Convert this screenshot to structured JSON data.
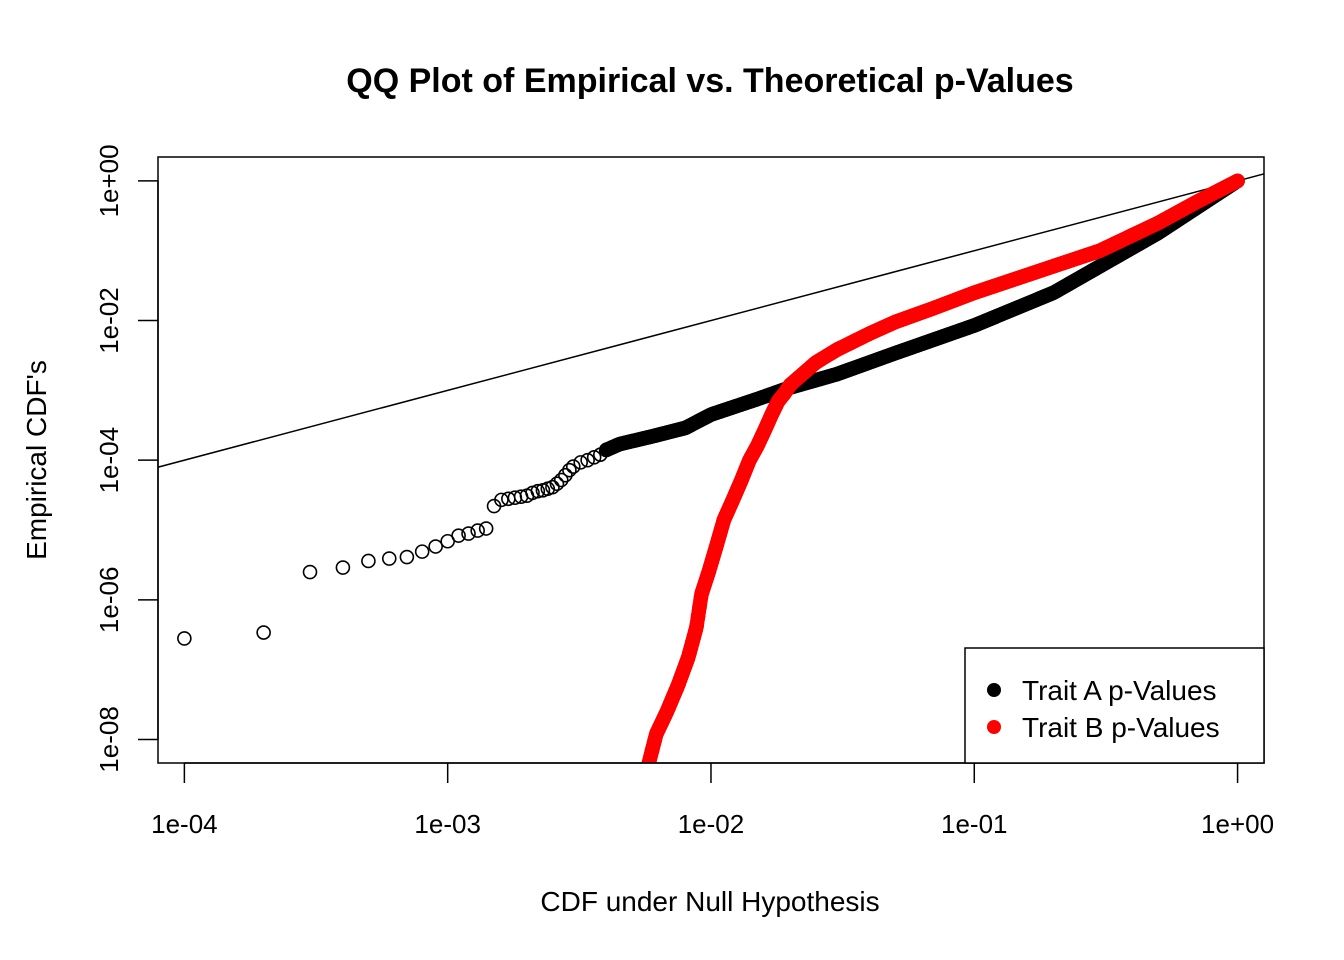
{
  "chart_data": {
    "type": "scatter",
    "title": "QQ Plot of Empirical vs. Theoretical p-Values",
    "xlabel": "CDF under Null Hypothesis",
    "ylabel": "Empirical CDF's",
    "x_scale": "log",
    "y_scale": "log",
    "xlim": [
      7.94e-05,
      1.26
    ],
    "ylim": [
      4.6e-09,
      2.2
    ],
    "x_ticks": [
      {
        "value": 0.0001,
        "label": "1e-04"
      },
      {
        "value": 0.001,
        "label": "1e-03"
      },
      {
        "value": 0.01,
        "label": "1e-02"
      },
      {
        "value": 0.1,
        "label": "1e-01"
      },
      {
        "value": 1,
        "label": "1e+00"
      }
    ],
    "y_ticks": [
      {
        "value": 1e-08,
        "label": "1e-08"
      },
      {
        "value": 1e-06,
        "label": "1e-06"
      },
      {
        "value": 0.0001,
        "label": "1e-04"
      },
      {
        "value": 0.01,
        "label": "1e-02"
      },
      {
        "value": 1,
        "label": "1e+00"
      }
    ],
    "reference_line": {
      "slope": 1,
      "intercept": 0,
      "color": "#000000"
    },
    "legend_position": "bottom-right",
    "series": [
      {
        "name": "Trait A p-Values",
        "color": "#000000",
        "marker_filled": false,
        "discrete_points": [
          [
            0.0001,
            2.8e-07
          ],
          [
            0.0002,
            3.4e-07
          ],
          [
            0.0003,
            2.5e-06
          ],
          [
            0.0004,
            2.9e-06
          ],
          [
            0.0005,
            3.6e-06
          ],
          [
            0.0006,
            3.9e-06
          ],
          [
            0.0007,
            4.1e-06
          ],
          [
            0.0008,
            4.9e-06
          ],
          [
            0.0009,
            5.8e-06
          ],
          [
            0.001,
            6.9e-06
          ],
          [
            0.0011,
            8.3e-06
          ],
          [
            0.0012,
            8.9e-06
          ],
          [
            0.0013,
            9.8e-06
          ],
          [
            0.0014,
            1.05e-05
          ],
          [
            0.0015,
            2.2e-05
          ],
          [
            0.0016,
            2.7e-05
          ],
          [
            0.0017,
            2.8e-05
          ],
          [
            0.0018,
            2.9e-05
          ],
          [
            0.0019,
            3e-05
          ],
          [
            0.002,
            3.1e-05
          ],
          [
            0.0021,
            3.4e-05
          ],
          [
            0.0022,
            3.6e-05
          ],
          [
            0.0023,
            3.7e-05
          ],
          [
            0.0024,
            3.9e-05
          ],
          [
            0.0025,
            4.1e-05
          ],
          [
            0.0026,
            4.6e-05
          ],
          [
            0.0027,
            5.2e-05
          ],
          [
            0.0028,
            6.1e-05
          ],
          [
            0.0029,
            7.2e-05
          ],
          [
            0.003,
            8.1e-05
          ],
          [
            0.0032,
            9.3e-05
          ],
          [
            0.0034,
            0.0001
          ],
          [
            0.0036,
            0.00011
          ],
          [
            0.0038,
            0.00012
          ],
          [
            0.004,
            0.00014
          ]
        ],
        "curve": [
          [
            0.004,
            0.00014
          ],
          [
            0.0045,
            0.00017
          ],
          [
            0.006,
            0.00022
          ],
          [
            0.008,
            0.00029
          ],
          [
            0.01,
            0.00045
          ],
          [
            0.015,
            0.00075
          ],
          [
            0.02,
            0.0011
          ],
          [
            0.03,
            0.0017
          ],
          [
            0.05,
            0.0034
          ],
          [
            0.1,
            0.0085
          ],
          [
            0.2,
            0.025
          ],
          [
            0.5,
            0.18
          ],
          [
            1,
            1
          ]
        ]
      },
      {
        "name": "Trait B p-Values",
        "color": "#ff0000",
        "marker_filled": true,
        "curve": [
          [
            0.0058,
            4.5e-09
          ],
          [
            0.0062,
            1.2e-08
          ],
          [
            0.0068,
            2.5e-08
          ],
          [
            0.0075,
            6e-08
          ],
          [
            0.0082,
            1.5e-07
          ],
          [
            0.0088,
            4e-07
          ],
          [
            0.0092,
            1.2e-06
          ],
          [
            0.0098,
            2.5e-06
          ],
          [
            0.0105,
            6e-06
          ],
          [
            0.0112,
            1.4e-05
          ],
          [
            0.012,
            2.5e-05
          ],
          [
            0.013,
            5e-05
          ],
          [
            0.014,
            0.0001
          ],
          [
            0.015,
            0.00016
          ],
          [
            0.016,
            0.00027
          ],
          [
            0.017,
            0.00045
          ],
          [
            0.018,
            0.0007
          ],
          [
            0.019,
            0.0009
          ],
          [
            0.02,
            0.0012
          ],
          [
            0.025,
            0.0025
          ],
          [
            0.03,
            0.0038
          ],
          [
            0.04,
            0.0065
          ],
          [
            0.05,
            0.0095
          ],
          [
            0.07,
            0.015
          ],
          [
            0.1,
            0.025
          ],
          [
            0.2,
            0.06
          ],
          [
            0.3,
            0.1
          ],
          [
            0.5,
            0.25
          ],
          [
            0.7,
            0.5
          ],
          [
            1,
            1
          ]
        ]
      }
    ]
  }
}
